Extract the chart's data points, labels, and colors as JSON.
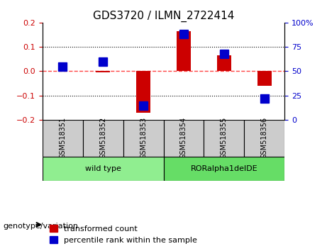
{
  "title": "GDS3720 / ILMN_2722414",
  "samples": [
    "GSM518351",
    "GSM518352",
    "GSM518353",
    "GSM518354",
    "GSM518355",
    "GSM518356"
  ],
  "red_values": [
    0.0,
    -0.005,
    -0.17,
    0.165,
    0.065,
    -0.06
  ],
  "blue_values_pct": [
    55,
    60,
    15,
    88,
    68,
    22
  ],
  "ylim_left": [
    -0.2,
    0.2
  ],
  "ylim_right": [
    0,
    100
  ],
  "yticks_left": [
    -0.2,
    -0.1,
    0.0,
    0.1,
    0.2
  ],
  "yticks_right": [
    0,
    25,
    50,
    75,
    100
  ],
  "groups": [
    {
      "label": "wild type",
      "samples": [
        0,
        1,
        2
      ],
      "color": "#90EE90"
    },
    {
      "label": "RORalpha1delDE",
      "samples": [
        3,
        4,
        5
      ],
      "color": "#66DD66"
    }
  ],
  "red_color": "#CC0000",
  "blue_color": "#0000CC",
  "dashed_red_color": "#FF4444",
  "grid_color": "#000000",
  "box_color": "#CCCCCC",
  "legend_red_label": "transformed count",
  "legend_blue_label": "percentile rank within the sample",
  "genotype_label": "genotype/variation",
  "bar_width": 0.35,
  "blue_marker_size": 8,
  "title_fontsize": 11,
  "axis_fontsize": 9,
  "tick_fontsize": 8,
  "legend_fontsize": 8
}
